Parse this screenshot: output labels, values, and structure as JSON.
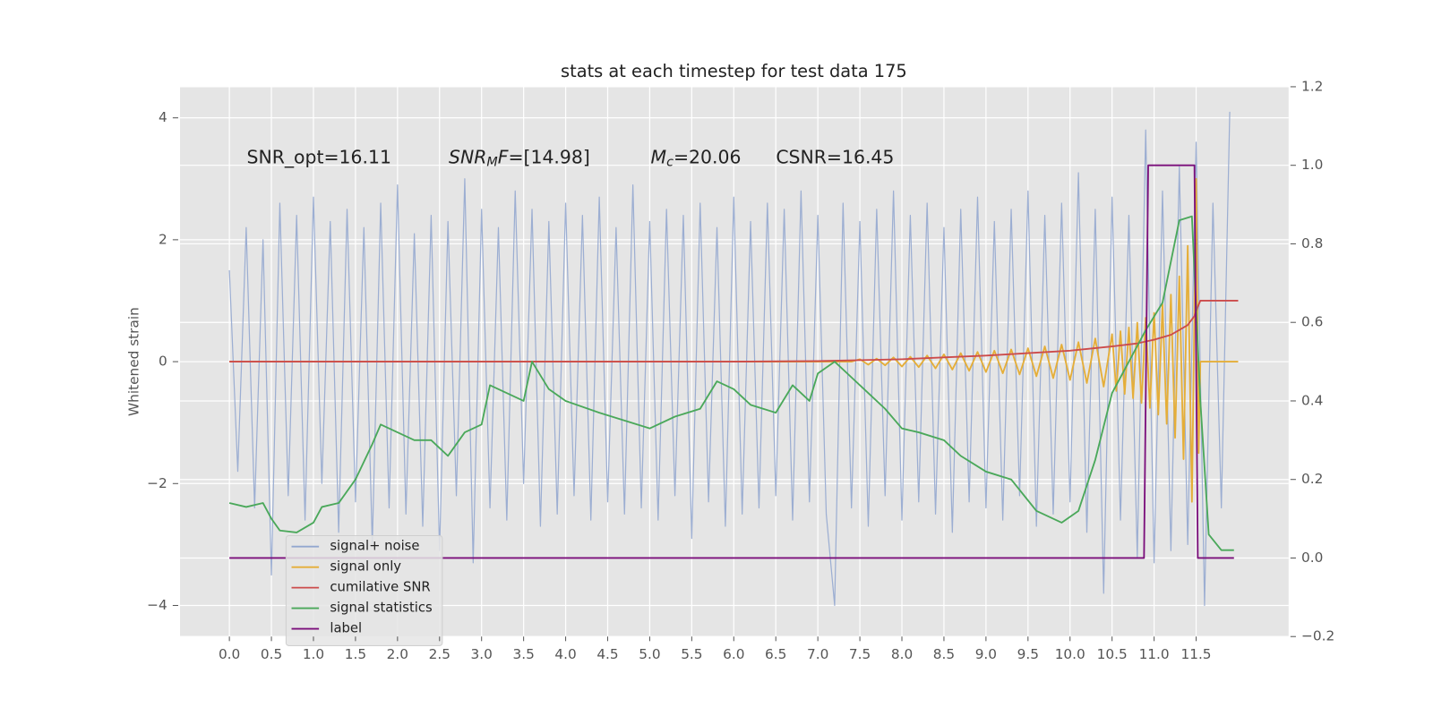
{
  "chart_data": {
    "type": "line",
    "title": "stats at each timestep for test data 175",
    "y_label": "Whitened strain",
    "annotations": [
      [
        "SNR_opt=16.11"
      ],
      [
        "SNR",
        "M",
        "F",
        "=[14.98]"
      ],
      [
        "M",
        "c",
        "=20.06"
      ],
      [
        "CSNR=16.45"
      ]
    ],
    "xlim": [
      -0.587,
      12.6
    ],
    "ylim": [
      -4.51,
      4.51
    ],
    "y2lim": [
      -0.2,
      1.2
    ],
    "xticks": [
      {
        "value": 0,
        "label": "0.0"
      },
      0.5,
      {
        "value": 1,
        "label": "1.0"
      },
      1.5,
      {
        "value": 2,
        "label": "2.0"
      },
      2.5,
      {
        "value": 3,
        "label": "3.0"
      },
      3.5,
      {
        "value": 4,
        "label": "4.0"
      },
      4.5,
      {
        "value": 5,
        "label": "5.0"
      },
      5.5,
      {
        "value": 6,
        "label": "6.0"
      },
      6.5,
      {
        "value": 7,
        "label": "7.0"
      },
      7.5,
      {
        "value": 8,
        "label": "8.0"
      },
      8.5,
      {
        "value": 9,
        "label": "9.0"
      },
      9.5,
      {
        "value": 10,
        "label": "10.0"
      },
      10.5,
      {
        "value": 11,
        "label": "11.0"
      },
      11.5
    ],
    "yticks": [
      {
        "value": -4,
        "label": "−4"
      },
      {
        "value": -2,
        "label": "−2"
      },
      0,
      2,
      4
    ],
    "y2ticks": [
      {
        "value": -0.2,
        "label": "−0.2"
      },
      {
        "value": 0,
        "label": "0.0"
      },
      0.2,
      0.4,
      0.6,
      0.8,
      {
        "value": 1,
        "label": "1.0"
      },
      1.2
    ],
    "grid": true,
    "legend": "lower left",
    "series": [
      {
        "name": "signal+ noise",
        "color": "#93a7cf",
        "x": [
          0,
          0.1,
          0.2,
          0.3,
          0.4,
          0.5,
          0.6,
          0.7,
          0.8,
          0.9,
          1,
          1.1,
          1.2,
          1.3,
          1.4,
          1.5,
          1.6,
          1.7,
          1.8,
          1.9,
          2,
          2.1,
          2.2,
          2.3,
          2.4,
          2.5,
          2.6,
          2.7,
          2.8,
          2.9,
          3,
          3.1,
          3.2,
          3.3,
          3.4,
          3.5,
          3.6,
          3.7,
          3.8,
          3.9,
          4,
          4.1,
          4.2,
          4.3,
          4.4,
          4.5,
          4.6,
          4.7,
          4.8,
          4.9,
          5,
          5.1,
          5.2,
          5.3,
          5.4,
          5.5,
          5.6,
          5.7,
          5.8,
          5.9,
          6,
          6.1,
          6.2,
          6.3,
          6.4,
          6.5,
          6.6,
          6.7,
          6.8,
          6.9,
          7,
          7.1,
          7.2,
          7.3,
          7.4,
          7.5,
          7.6,
          7.7,
          7.8,
          7.9,
          8,
          8.1,
          8.2,
          8.3,
          8.4,
          8.5,
          8.6,
          8.7,
          8.8,
          8.9,
          9,
          9.1,
          9.2,
          9.3,
          9.4,
          9.5,
          9.6,
          9.7,
          9.8,
          9.9,
          10,
          10.1,
          10.2,
          10.3,
          10.4,
          10.5,
          10.6,
          10.7,
          10.8,
          10.9,
          11,
          11.1,
          11.2,
          11.3,
          11.4,
          11.5,
          11.6,
          11.7,
          11.8,
          11.9
        ],
        "values": [
          1.5,
          -1.8,
          2.2,
          -2.4,
          2.0,
          -3.5,
          2.6,
          -2.2,
          2.4,
          -2.6,
          2.7,
          -2.0,
          2.3,
          -2.8,
          2.5,
          -2.3,
          2.2,
          -3.0,
          2.6,
          -2.4,
          2.9,
          -2.5,
          2.1,
          -2.7,
          2.4,
          -3.1,
          2.3,
          -2.2,
          3.0,
          -3.3,
          2.5,
          -2.4,
          2.2,
          -2.6,
          2.8,
          -2.0,
          2.5,
          -2.7,
          2.3,
          -2.5,
          2.6,
          -2.2,
          2.4,
          -2.6,
          2.7,
          -2.3,
          2.2,
          -2.5,
          2.9,
          -2.4,
          2.3,
          -2.6,
          2.5,
          -2.2,
          2.4,
          -2.9,
          2.6,
          -2.3,
          2.2,
          -2.7,
          2.7,
          -2.5,
          2.3,
          -2.4,
          2.6,
          -2.2,
          2.5,
          -2.6,
          2.8,
          -2.3,
          2.4,
          -2.5,
          -4.0,
          2.6,
          -2.4,
          2.3,
          -2.7,
          2.5,
          -2.2,
          2.8,
          -2.6,
          2.4,
          -2.3,
          2.6,
          -2.5,
          2.2,
          -2.8,
          2.5,
          -2.3,
          2.7,
          -2.4,
          2.3,
          -2.6,
          2.5,
          -2.2,
          2.8,
          -2.7,
          2.4,
          -2.5,
          2.6,
          -2.3,
          3.1,
          -2.8,
          2.5,
          -3.8,
          2.7,
          -2.6,
          2.4,
          -3.2,
          3.8,
          -3.3,
          2.8,
          -3.1,
          3.2,
          -3.0,
          3.6,
          -4.0,
          2.6,
          -2.4,
          4.1
        ]
      },
      {
        "name": "signal only",
        "color": "#e5ae38",
        "x": [
          0,
          7.4,
          7.5,
          7.6,
          7.7,
          7.8,
          7.9,
          8,
          8.1,
          8.2,
          8.3,
          8.4,
          8.5,
          8.6,
          8.7,
          8.8,
          8.9,
          9,
          9.1,
          9.2,
          9.3,
          9.4,
          9.5,
          9.6,
          9.7,
          9.8,
          9.9,
          10,
          10.1,
          10.2,
          10.3,
          10.4,
          10.5,
          10.55,
          10.6,
          10.65,
          10.7,
          10.75,
          10.8,
          10.85,
          10.9,
          10.95,
          11,
          11.05,
          11.1,
          11.15,
          11.2,
          11.25,
          11.3,
          11.35,
          11.4,
          11.45,
          11.5,
          11.53,
          11.55,
          12
        ],
        "values": [
          0,
          0,
          0.04,
          -0.05,
          0.05,
          -0.06,
          0.07,
          -0.08,
          0.08,
          -0.09,
          0.1,
          -0.11,
          0.12,
          -0.13,
          0.14,
          -0.15,
          0.16,
          -0.17,
          0.18,
          -0.19,
          0.2,
          -0.21,
          0.22,
          -0.24,
          0.25,
          -0.27,
          0.28,
          -0.3,
          0.32,
          -0.35,
          0.38,
          -0.41,
          0.45,
          -0.48,
          0.5,
          -0.53,
          0.56,
          -0.6,
          0.64,
          -0.68,
          0.72,
          -0.76,
          0.8,
          -0.87,
          0.94,
          -1.02,
          1.1,
          -1.25,
          1.4,
          -1.6,
          1.9,
          -2.3,
          3.0,
          -1.5,
          0,
          0
        ]
      },
      {
        "name": "cumilative SNR",
        "color": "#cc4b4b",
        "x": [
          0,
          6,
          7,
          8,
          8.5,
          9,
          9.5,
          10,
          10.5,
          10.8,
          11,
          11.2,
          11.3,
          11.4,
          11.48,
          11.52,
          11.55,
          12
        ],
        "values": [
          0,
          0,
          0.01,
          0.04,
          0.07,
          0.1,
          0.14,
          0.18,
          0.25,
          0.3,
          0.36,
          0.44,
          0.52,
          0.6,
          0.75,
          0.9,
          1.0,
          1.0
        ]
      },
      {
        "name": "signal statistics",
        "color": "#4aa85a",
        "axis": "y2",
        "x": [
          0,
          0.2,
          0.4,
          0.5,
          0.6,
          0.8,
          1,
          1.1,
          1.3,
          1.5,
          1.7,
          1.8,
          2,
          2.2,
          2.4,
          2.6,
          2.8,
          3,
          3.1,
          3.3,
          3.5,
          3.6,
          3.8,
          4,
          4.4,
          4.7,
          5,
          5.3,
          5.6,
          5.8,
          6,
          6.2,
          6.5,
          6.7,
          6.9,
          7,
          7.2,
          7.4,
          7.6,
          7.8,
          8,
          8.2,
          8.5,
          8.7,
          9,
          9.3,
          9.6,
          9.9,
          10.1,
          10.3,
          10.5,
          10.7,
          10.9,
          11.1,
          11.3,
          11.45,
          11.55,
          11.65,
          11.8,
          11.95
        ],
        "values": [
          0.14,
          0.13,
          0.14,
          0.1,
          0.07,
          0.065,
          0.09,
          0.13,
          0.14,
          0.2,
          0.29,
          0.34,
          0.32,
          0.3,
          0.3,
          0.26,
          0.32,
          0.34,
          0.44,
          0.42,
          0.4,
          0.5,
          0.43,
          0.4,
          0.37,
          0.35,
          0.33,
          0.36,
          0.38,
          0.45,
          0.43,
          0.39,
          0.37,
          0.44,
          0.4,
          0.47,
          0.5,
          0.46,
          0.42,
          0.38,
          0.33,
          0.32,
          0.3,
          0.26,
          0.22,
          0.2,
          0.12,
          0.09,
          0.12,
          0.25,
          0.42,
          0.5,
          0.58,
          0.65,
          0.86,
          0.87,
          0.4,
          0.06,
          0.02,
          0.02
        ]
      },
      {
        "name": "label",
        "color": "#7b0f7b",
        "axis": "y2",
        "x": [
          0,
          10.88,
          10.93,
          11.48,
          11.52,
          11.95
        ],
        "values": [
          0,
          0,
          1,
          1,
          0,
          0
        ]
      }
    ]
  }
}
